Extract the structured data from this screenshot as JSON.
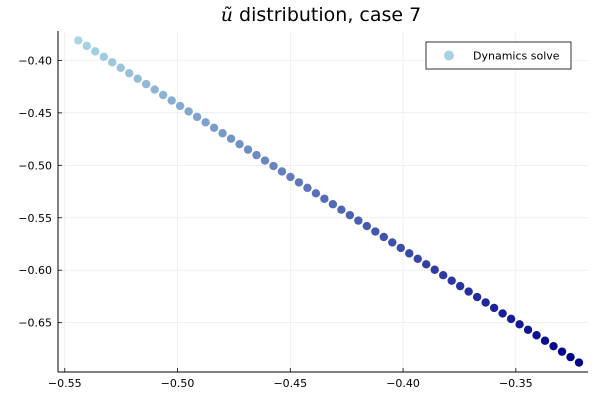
{
  "chart_data": {
    "type": "scatter",
    "title_symbol": "ũ",
    "title_rest": " distribution, case 7",
    "xlabel": "",
    "ylabel": "",
    "xlim": [
      -0.553,
      -0.318
    ],
    "ylim": [
      -0.697,
      -0.372
    ],
    "x_ticks": [
      -0.55,
      -0.5,
      -0.45,
      -0.4,
      -0.35
    ],
    "x_tick_labels": [
      "−0.55",
      "−0.50",
      "−0.45",
      "−0.40",
      "−0.35"
    ],
    "y_ticks": [
      -0.4,
      -0.45,
      -0.5,
      -0.55,
      -0.6,
      -0.65
    ],
    "y_tick_labels": [
      "−0.40",
      "−0.45",
      "−0.50",
      "−0.55",
      "−0.60",
      "−0.65"
    ],
    "grid": true,
    "legend_position": "top-right",
    "series": [
      {
        "name": "Dynamics solve",
        "legend_color": "#a6d2e2",
        "color_start": "#a8d6e3",
        "color_end": "#00008b",
        "x_start": -0.544,
        "y_start": -0.381,
        "x_end": -0.322,
        "y_end": -0.688,
        "n_points": 60
      }
    ]
  }
}
